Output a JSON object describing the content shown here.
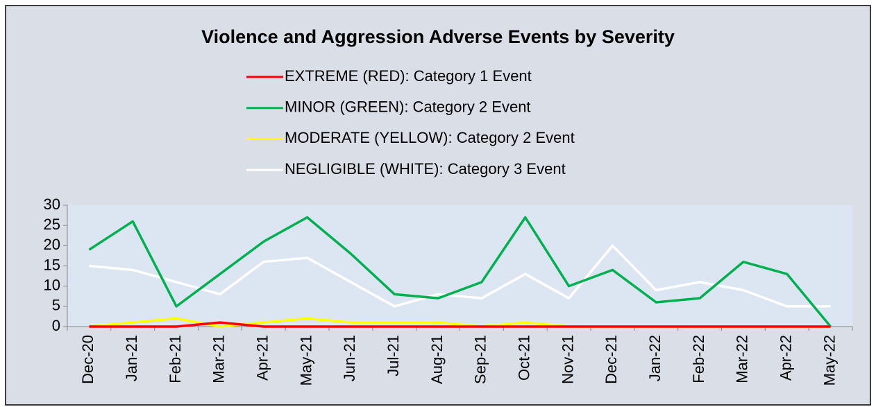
{
  "chart_data": {
    "type": "line",
    "title": "Violence and Aggression Adverse Events by Severity",
    "categories": [
      "Dec-20",
      "Jan-21",
      "Feb-21",
      "Mar-21",
      "Apr-21",
      "May-21",
      "Jun-21",
      "Jul-21",
      "Aug-21",
      "Sep-21",
      "Oct-21",
      "Nov-21",
      "Dec-21",
      "Jan-22",
      "Feb-22",
      "Mar-22",
      "Apr-22",
      "May-22"
    ],
    "series": [
      {
        "name": "EXTREME (RED): Category 1 Event",
        "color": "#ff0000",
        "values": [
          0,
          0,
          0,
          1,
          0,
          0,
          0,
          0,
          0,
          0,
          0,
          0,
          0,
          0,
          0,
          0,
          0,
          0
        ]
      },
      {
        "name": "MINOR (GREEN): Category 2 Event",
        "color": "#00b050",
        "values": [
          19,
          26,
          5,
          13,
          21,
          27,
          18,
          8,
          7,
          11,
          27,
          10,
          14,
          6,
          7,
          16,
          13,
          0
        ]
      },
      {
        "name": "MODERATE (YELLOW): Category 2 Event",
        "color": "#ffff00",
        "values": [
          0,
          1,
          2,
          0,
          1,
          2,
          1,
          1,
          1,
          0,
          1,
          0,
          0,
          0,
          0,
          0,
          0,
          0
        ]
      },
      {
        "name": "NEGLIGIBLE (WHITE): Category 3 Event",
        "color": "#ffffff",
        "values": [
          15,
          14,
          11,
          8,
          16,
          17,
          11,
          5,
          8,
          7,
          13,
          7,
          20,
          9,
          11,
          9,
          5,
          5
        ]
      }
    ],
    "ylim": [
      0,
      30
    ],
    "yticks": [
      0,
      5,
      10,
      15,
      20,
      25,
      30
    ],
    "legend": "top"
  }
}
